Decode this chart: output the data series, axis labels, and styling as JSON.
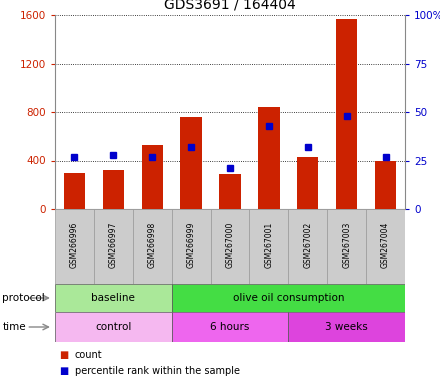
{
  "title": "GDS3691 / 164404",
  "samples": [
    "GSM266996",
    "GSM266997",
    "GSM266998",
    "GSM266999",
    "GSM267000",
    "GSM267001",
    "GSM267002",
    "GSM267003",
    "GSM267004"
  ],
  "counts": [
    300,
    320,
    530,
    760,
    290,
    840,
    430,
    1570,
    400
  ],
  "percentile_ranks": [
    27,
    28,
    27,
    32,
    21,
    43,
    32,
    48,
    27
  ],
  "left_ylim": [
    0,
    1600
  ],
  "right_ylim": [
    0,
    100
  ],
  "left_yticks": [
    0,
    400,
    800,
    1200,
    1600
  ],
  "right_yticks": [
    0,
    25,
    50,
    75,
    100
  ],
  "bar_color": "#cc2200",
  "dot_color": "#0000cc",
  "protocol_groups": [
    {
      "label": "baseline",
      "start": 0,
      "end": 3,
      "color": "#aae899"
    },
    {
      "label": "olive oil consumption",
      "start": 3,
      "end": 9,
      "color": "#44dd44"
    }
  ],
  "time_groups": [
    {
      "label": "control",
      "start": 0,
      "end": 3,
      "color": "#f0aaee"
    },
    {
      "label": "6 hours",
      "start": 3,
      "end": 6,
      "color": "#ee66ee"
    },
    {
      "label": "3 weeks",
      "start": 6,
      "end": 9,
      "color": "#ee44ee"
    }
  ],
  "legend_count_label": "count",
  "legend_pct_label": "percentile rank within the sample",
  "bg_color": "#ffffff",
  "label_row_color": "#cccccc",
  "protocol_label": "protocol",
  "time_label": "time"
}
